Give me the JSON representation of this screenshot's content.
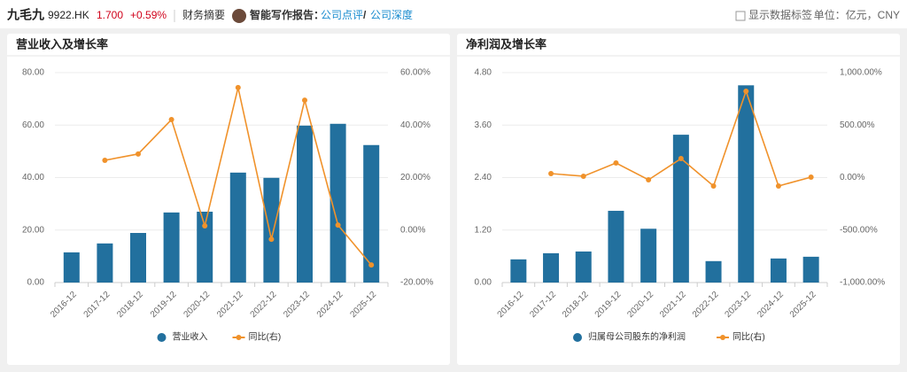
{
  "header": {
    "name": "九毛九",
    "code": "9922.HK",
    "price": "1.700",
    "change": "+0.59%",
    "summary": "财务摘要",
    "report_label": "智能写作报告：",
    "link1": "公司点评",
    "separator": "/",
    "link2": "公司深度",
    "show_labels": "显示数据标签",
    "unit": "单位：亿元，CNY"
  },
  "chart_data": [
    {
      "type": "bar-line",
      "title": "营业收入及增长率",
      "categories": [
        "2016-12",
        "2017-12",
        "2018-12",
        "2019-12",
        "2020-12",
        "2021-12",
        "2022-12",
        "2023-12",
        "2024-12",
        "2025-12"
      ],
      "series": [
        {
          "name": "营业收入",
          "color": "#22709e",
          "values": [
            11.5,
            14.9,
            18.9,
            26.7,
            27.0,
            41.9,
            39.9,
            59.8,
            60.5,
            52.4
          ]
        },
        {
          "name": "同比(右)",
          "color": "#f0922b",
          "axis": "y2",
          "values": [
            null,
            26.6,
            29.0,
            42.1,
            1.6,
            54.3,
            -3.5,
            49.5,
            1.9,
            -13.3
          ]
        }
      ],
      "ylim": [
        0,
        80
      ],
      "yticks": [
        {
          "value": 0,
          "label": "0.00"
        },
        {
          "value": 20,
          "label": "20.00"
        },
        {
          "value": 40,
          "label": "40.00"
        },
        {
          "value": 60,
          "label": "60.00"
        },
        {
          "value": 80,
          "label": "80.00"
        }
      ],
      "y2lim": [
        -20,
        60
      ],
      "y2ticks": [
        {
          "value": -20,
          "label": "-20.00%"
        },
        {
          "value": 0,
          "label": "0.00%"
        },
        {
          "value": 20,
          "label": "20.00%"
        },
        {
          "value": 40,
          "label": "40.00%"
        },
        {
          "value": 60,
          "label": "60.00%"
        }
      ],
      "grid": true
    },
    {
      "type": "bar-line",
      "title": "净利润及增长率",
      "categories": [
        "2016-12",
        "2017-12",
        "2018-12",
        "2019-12",
        "2020-12",
        "2021-12",
        "2022-12",
        "2023-12",
        "2024-12",
        "2025-12"
      ],
      "series": [
        {
          "name": "归属母公司股东的净利润",
          "color": "#22709e",
          "values": [
            0.53,
            0.67,
            0.71,
            1.64,
            1.23,
            3.38,
            0.49,
            4.51,
            0.55,
            0.59
          ]
        },
        {
          "name": "同比(右)",
          "color": "#f0922b",
          "axis": "y2",
          "values": [
            null,
            38,
            13,
            139,
            -21,
            181,
            -80,
            823,
            -80,
            4
          ]
        }
      ],
      "ylim": [
        0,
        4.8
      ],
      "yticks": [
        {
          "value": 0,
          "label": "0.00"
        },
        {
          "value": 1.2,
          "label": "1.20"
        },
        {
          "value": 2.4,
          "label": "2.40"
        },
        {
          "value": 3.6,
          "label": "3.60"
        },
        {
          "value": 4.8,
          "label": "4.80"
        }
      ],
      "y2lim": [
        -1000,
        1000
      ],
      "y2ticks": [
        {
          "value": -1000,
          "label": "-1,000.00%"
        },
        {
          "value": -500,
          "label": "-500.00%"
        },
        {
          "value": 0,
          "label": "0.00%"
        },
        {
          "value": 500,
          "label": "500.00%"
        },
        {
          "value": 1000,
          "label": "1,000.00%"
        }
      ],
      "grid": true
    }
  ]
}
